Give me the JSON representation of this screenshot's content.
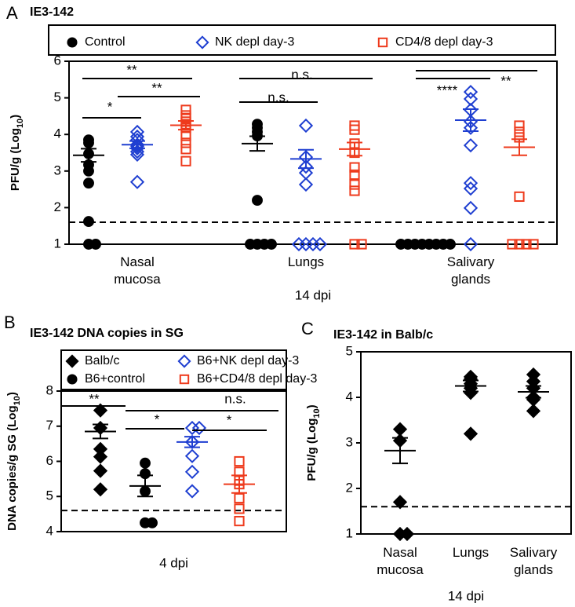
{
  "chart_data": [
    {
      "type": "strip",
      "panel_label": "A",
      "title": "IE3-142",
      "ylabel": [
        "PFU/g (Log",
        "10",
        ")"
      ],
      "xlabel": "14 dpi",
      "categories": [
        "Nasal mucosa",
        "Lungs",
        "Salivary glands"
      ],
      "ylim": [
        1,
        6
      ],
      "yticks": [
        1,
        2,
        3,
        4,
        5,
        6
      ],
      "reference_line": 1.6,
      "series": [
        {
          "name": "Control",
          "color": "#000000",
          "marker": "circle",
          "filled": true,
          "values": [
            [
              3.85,
              3.77,
              3.47,
              3.17,
              3.0,
              2.67,
              1.62,
              1,
              1
            ],
            [
              4.28,
              4.18,
              4.07,
              3.96,
              2.2,
              1,
              1,
              1,
              1
            ],
            [
              1,
              1,
              1,
              1,
              1,
              1,
              1,
              1
            ]
          ],
          "means": [
            3.43,
            3.75,
            1
          ],
          "sems": [
            0.18,
            0.2,
            0
          ]
        },
        {
          "name": "NK depl day-3",
          "color": "#1f3fd1",
          "marker": "diamond",
          "filled": false,
          "values": [
            [
              4.07,
              3.94,
              3.85,
              3.72,
              3.68,
              3.62,
              3.53,
              3.45,
              2.7
            ],
            [
              4.24,
              3.38,
              3.12,
              2.95,
              2.63,
              1,
              1,
              1,
              1
            ],
            [
              5.16,
              4.97,
              4.67,
              4.35,
              4.18,
              3.7,
              2.67,
              2.52,
              1.99,
              1
            ]
          ],
          "means": [
            3.72,
            3.33,
            4.39
          ],
          "sems": [
            0.1,
            0.25,
            0.3
          ]
        },
        {
          "name": "CD4/8 depl day-3",
          "color": "#ee3a1c",
          "marker": "square",
          "filled": false,
          "values": [
            [
              4.67,
              4.52,
              4.45,
              4.35,
              4.28,
              4.18,
              3.96,
              3.77,
              3.6,
              3.27
            ],
            [
              4.24,
              4.13,
              3.75,
              3.5,
              3.1,
              2.9,
              2.63,
              2.46,
              1,
              1
            ],
            [
              4.24,
              4.07,
              3.92,
              2.3,
              1,
              1,
              1,
              1
            ]
          ],
          "means": [
            4.25,
            3.6,
            3.65
          ],
          "sems": [
            0.12,
            0.18,
            0.22
          ]
        }
      ],
      "annotations": [
        "**",
        "*",
        "**",
        "n.s.",
        "n.s.",
        "****",
        "**"
      ]
    },
    {
      "type": "strip",
      "panel_label": "B",
      "title": "IE3-142 DNA copies in SG",
      "ylabel": [
        "DNA copies/g SG (Log",
        "10",
        ")"
      ],
      "xlabel": "4 dpi",
      "ylim": [
        4,
        8
      ],
      "yticks": [
        4,
        5,
        6,
        7,
        8
      ],
      "reference_line": 4.6,
      "series": [
        {
          "name": "Balb/c",
          "color": "#000000",
          "marker": "diamond",
          "filled": true,
          "values": [
            7.45,
            6.95,
            6.35,
            6.13,
            5.73,
            5.2
          ],
          "means": [
            6.85
          ],
          "sems": [
            0.2
          ]
        },
        {
          "name": "B6+control",
          "color": "#000000",
          "marker": "circle",
          "filled": true,
          "values": [
            5.95,
            5.65,
            5.15,
            4.25,
            4.25
          ],
          "means": [
            5.3
          ],
          "sems": [
            0.3
          ]
        },
        {
          "name": "B6+NK depl day-3",
          "color": "#1f3fd1",
          "marker": "diamond",
          "filled": false,
          "values": [
            6.95,
            6.95,
            6.55,
            6.15,
            5.7,
            5.15
          ],
          "means": [
            6.55
          ],
          "sems": [
            0.15
          ]
        },
        {
          "name": "B6+CD4/8 depl day-3",
          "color": "#ee3a1c",
          "marker": "square",
          "filled": false,
          "values": [
            6.0,
            5.7,
            5.45,
            5.35,
            4.95,
            4.65,
            4.3
          ],
          "means": [
            5.35
          ],
          "sems": [
            0.25
          ]
        }
      ],
      "annotations": [
        "**",
        "n.s.",
        "*",
        "*"
      ]
    },
    {
      "type": "strip",
      "panel_label": "C",
      "title": "IE3-142 in Balb/c",
      "ylabel": [
        "PFU/g (Log",
        "10",
        ")"
      ],
      "xlabel": "14 dpi",
      "categories": [
        "Nasal mucosa",
        "Lungs",
        "Salivary glands"
      ],
      "ylim": [
        1,
        5
      ],
      "yticks": [
        1,
        2,
        3,
        4,
        5
      ],
      "reference_line": 1.6,
      "series": [
        {
          "color": "#000000",
          "marker": "diamond",
          "filled": true,
          "values": [
            [
              3.3,
              3.05,
              1.7,
              1,
              1
            ],
            [
              4.45,
              4.4,
              4.3,
              4.2,
              4.1,
              3.2
            ],
            [
              4.5,
              4.35,
              4.2,
              4.0,
              3.95,
              3.7
            ]
          ],
          "means": [
            2.83,
            4.25,
            4.12
          ],
          "sems": [
            0.28,
            0.12,
            0.13
          ]
        }
      ]
    }
  ]
}
